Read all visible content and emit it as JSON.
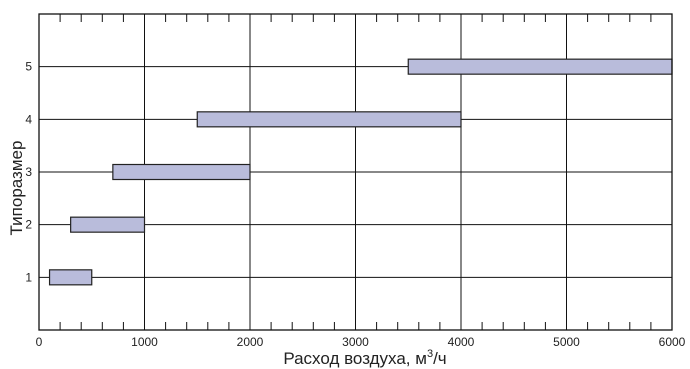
{
  "chart_data": {
    "type": "bar",
    "orientation": "horizontal-range",
    "title": "",
    "xlabel": "Расход воздуха, м³/ч",
    "xlabel_main": "Расход воздуха, м",
    "xlabel_sup": "3",
    "xlabel_tail": "/ч",
    "ylabel": "Типоразмер",
    "xlim": [
      0,
      6000
    ],
    "ylim": [
      0,
      6
    ],
    "x_ticks": [
      0,
      1000,
      2000,
      3000,
      4000,
      5000,
      6000
    ],
    "y_ticks": [
      1,
      2,
      3,
      4,
      5
    ],
    "x_minor_step": 200,
    "grid": true,
    "series": [
      {
        "values": [
          {
            "category": "1",
            "start": 100,
            "end": 500
          },
          {
            "category": "2",
            "start": 300,
            "end": 1000
          },
          {
            "category": "3",
            "start": 700,
            "end": 2000
          },
          {
            "category": "4",
            "start": 1500,
            "end": 4000
          },
          {
            "category": "5",
            "start": 3500,
            "end": 6000
          }
        ]
      }
    ],
    "bar_color": "#b9bcdb"
  }
}
